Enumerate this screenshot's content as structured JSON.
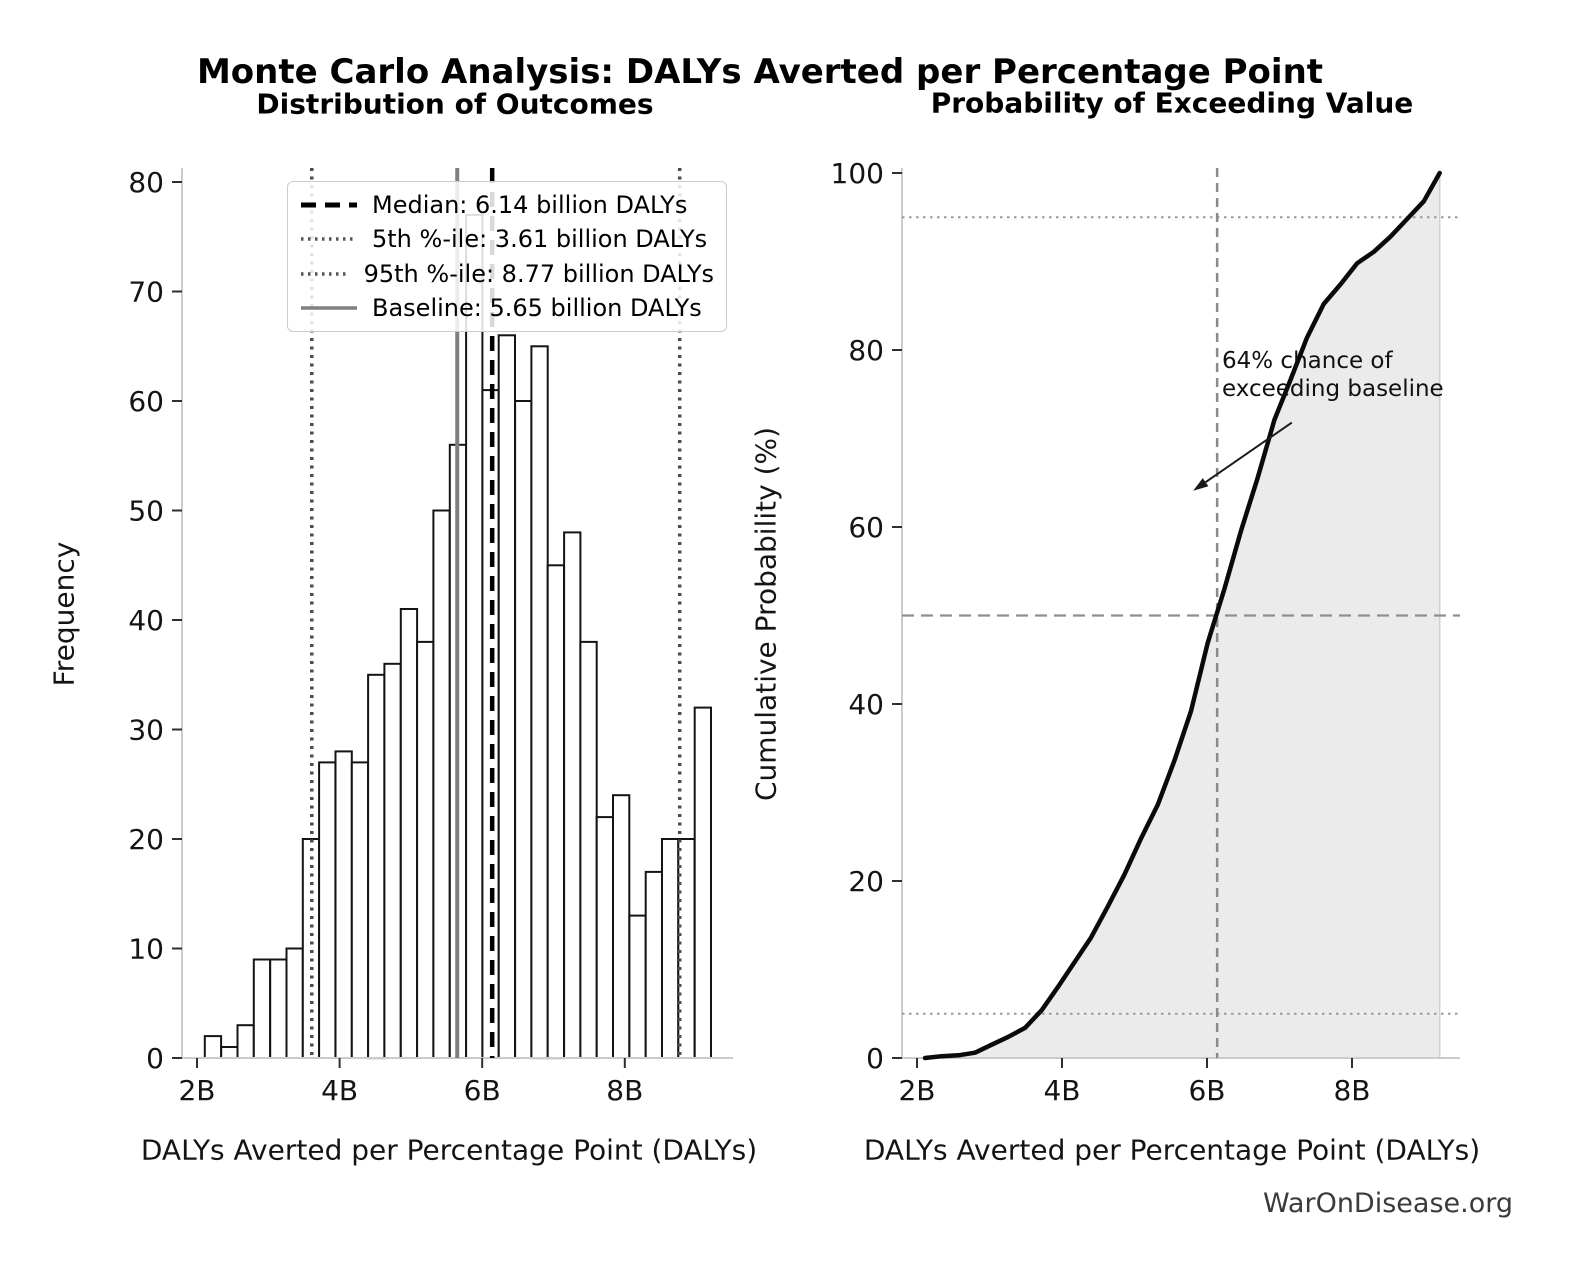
{
  "title": "Monte Carlo Analysis: DALYs Averted per Percentage Point",
  "watermark": "WarOnDisease.org",
  "legend": {
    "items": [
      {
        "label": "Median: 6.14 billion DALYs",
        "style": "dashed-bold",
        "color": "#000000"
      },
      {
        "label": "5th %-ile: 3.61 billion DALYs",
        "style": "dotted",
        "color": "#555555"
      },
      {
        "label": "95th %-ile: 8.77 billion DALYs",
        "style": "dotted",
        "color": "#555555"
      },
      {
        "label": "Baseline: 5.65 billion DALYs",
        "style": "solid",
        "color": "#808080"
      }
    ]
  },
  "chart_data": [
    {
      "type": "bar",
      "title": "Distribution of Outcomes",
      "xlabel": "DALYs Averted per Percentage Point (DALYs)",
      "ylabel": "Frequency",
      "unit": "billion DALYs",
      "n_samples": 1000,
      "bin_start": 2.11,
      "bin_width": 0.229,
      "counts": [
        2,
        1,
        3,
        9,
        9,
        10,
        20,
        27,
        28,
        27,
        35,
        36,
        41,
        38,
        50,
        56,
        77,
        61,
        66,
        60,
        65,
        45,
        48,
        38,
        22,
        24,
        13,
        17,
        20,
        20,
        32
      ],
      "markers": {
        "median": 6.14,
        "pct5": 3.61,
        "pct95": 8.77,
        "baseline": 5.65
      },
      "xticks": {
        "values": [
          2,
          4,
          6,
          8
        ],
        "labels": [
          "2B",
          "4B",
          "6B",
          "8B"
        ]
      },
      "yticks": [
        0,
        10,
        20,
        30,
        40,
        50,
        60,
        70,
        80
      ],
      "xlim": [
        1.79,
        9.52
      ],
      "ylim": [
        0,
        81.3
      ],
      "grid": false
    },
    {
      "type": "line",
      "title": "Probability of Exceeding Value",
      "xlabel": "DALYs Averted per Percentage Point (DALYs)",
      "ylabel": "Cumulative Probability (%)",
      "x": [
        2.11,
        2.34,
        2.57,
        2.8,
        3.03,
        3.26,
        3.49,
        3.72,
        3.95,
        4.18,
        4.4,
        4.63,
        4.86,
        5.09,
        5.32,
        5.55,
        5.78,
        6.01,
        6.24,
        6.47,
        6.7,
        6.93,
        7.15,
        7.38,
        7.61,
        7.84,
        8.07,
        8.3,
        8.53,
        8.76,
        8.99,
        9.21
      ],
      "y": [
        0,
        0.2,
        0.3,
        0.6,
        1.5,
        2.4,
        3.4,
        5.4,
        8.1,
        10.9,
        13.6,
        17.1,
        20.7,
        24.8,
        28.6,
        33.6,
        39.2,
        46.9,
        53.0,
        59.6,
        65.6,
        72.1,
        76.6,
        81.4,
        85.2,
        87.4,
        89.8,
        91.1,
        92.8,
        94.8,
        96.8,
        100
      ],
      "fill_under": true,
      "hlines": [
        5,
        50,
        95
      ],
      "vline": 6.14,
      "exceed_baseline_pct": 64,
      "annotation": {
        "line1": "64% chance of",
        "line2": "exceeding baseline",
        "arrow_from": {
          "x": 7.17,
          "y": 71.8
        },
        "arrow_to": {
          "x": 5.81,
          "y": 64.1
        }
      },
      "xticks": {
        "values": [
          2,
          4,
          6,
          8
        ],
        "labels": [
          "2B",
          "4B",
          "6B",
          "8B"
        ]
      },
      "yticks": [
        0,
        20,
        40,
        60,
        80,
        100
      ],
      "xlim": [
        1.79,
        9.59
      ],
      "ylim": [
        0,
        100.6
      ],
      "grid": false
    }
  ]
}
